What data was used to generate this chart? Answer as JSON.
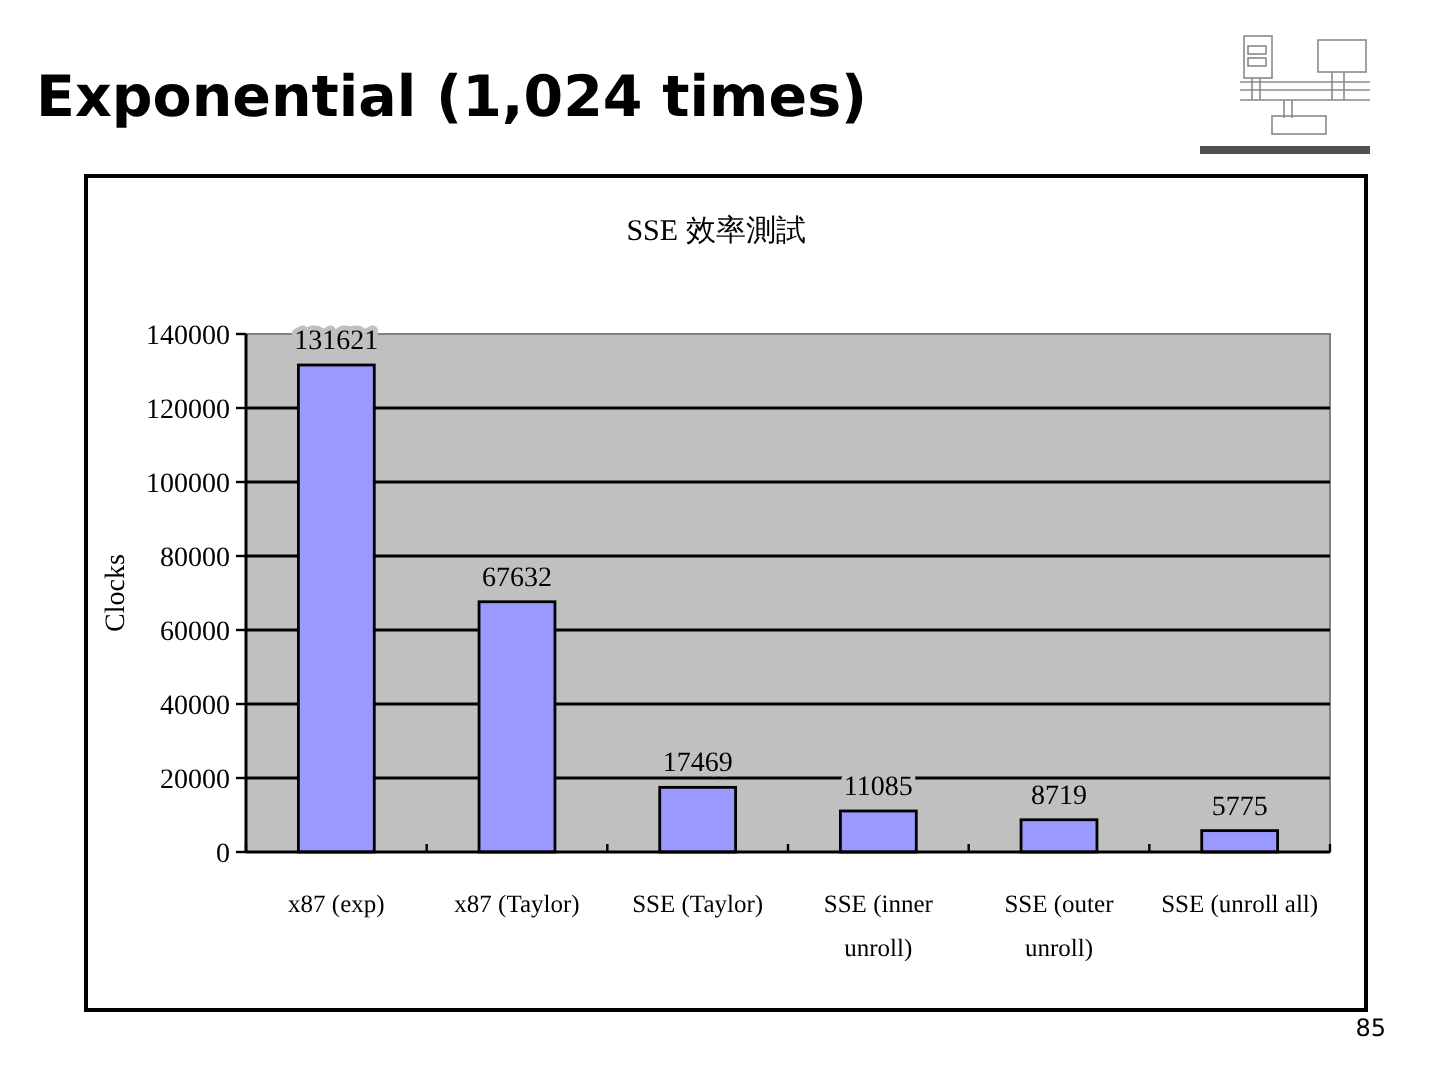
{
  "chart_data": {
    "type": "bar",
    "title": "Exponential (1,024 times)",
    "subtitle": "SSE 效率測試",
    "ylabel": "Clocks",
    "categories": [
      "x87 (exp)",
      "x87 (Taylor)",
      "SSE (Taylor)",
      "SSE (inner unroll)",
      "SSE (outer unroll)",
      "SSE (unroll all)"
    ],
    "values": [
      131621,
      67632,
      17469,
      11085,
      8719,
      5775
    ],
    "color": "#9999ff",
    "ylim": [
      0,
      140000
    ],
    "yticks": [
      0,
      20000,
      40000,
      60000,
      80000,
      100000,
      120000,
      140000
    ],
    "grid": "y",
    "data_labels": true,
    "annotations": [
      "85"
    ]
  }
}
